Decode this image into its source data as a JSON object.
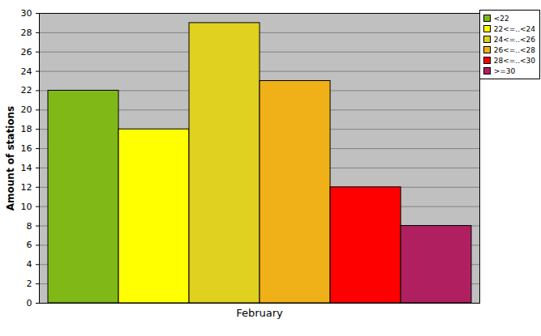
{
  "chart_data": {
    "type": "bar",
    "y_label": "Amount of stations",
    "categories": [
      "February"
    ],
    "series": [
      {
        "name": "<22",
        "color": "#80b818",
        "values": [
          22
        ]
      },
      {
        "name": "22<=..<24",
        "color": "#ffff00",
        "values": [
          18
        ]
      },
      {
        "name": "24<=..<26",
        "color": "#e0d020",
        "values": [
          29
        ]
      },
      {
        "name": "26<=..<28",
        "color": "#f0b018",
        "values": [
          23
        ]
      },
      {
        "name": "28<=..<30",
        "color": "#ff0000",
        "values": [
          12
        ]
      },
      {
        "name": ">=30",
        "color": "#b02060",
        "values": [
          8
        ]
      }
    ],
    "ylim": [
      0,
      30
    ],
    "yticks": [
      0,
      2,
      4,
      6,
      8,
      10,
      12,
      14,
      16,
      18,
      20,
      22,
      24,
      26,
      28,
      30
    ],
    "grid": true,
    "legend": "top-right"
  }
}
